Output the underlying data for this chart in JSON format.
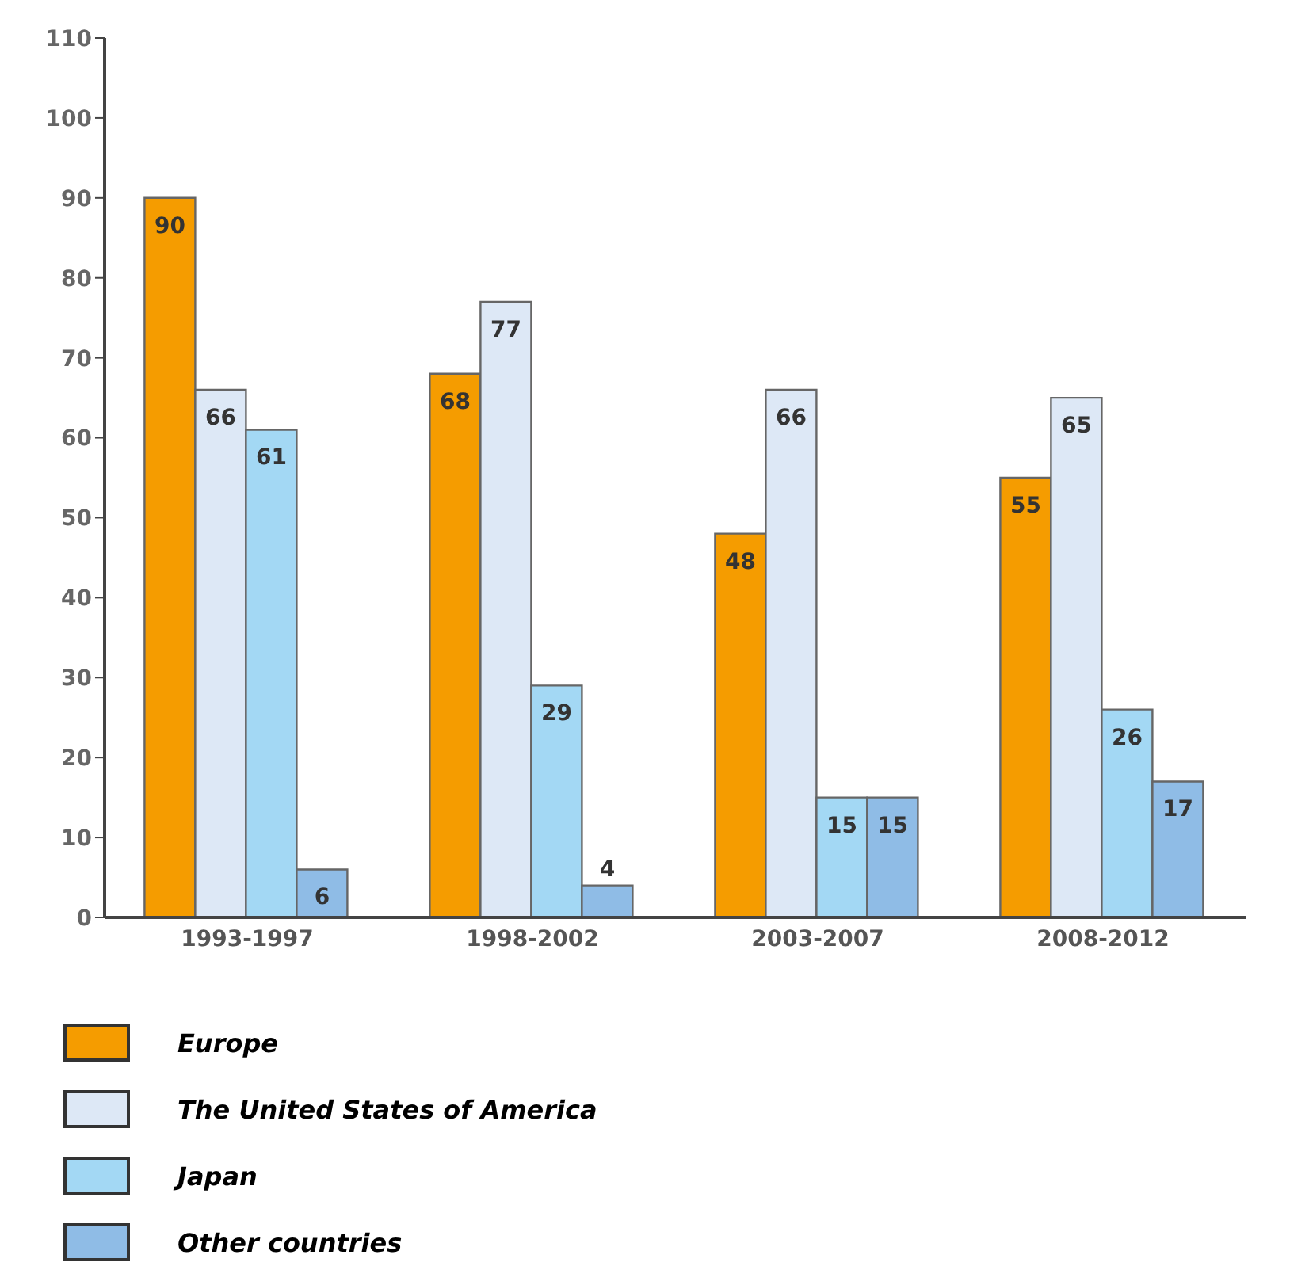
{
  "chart_data": {
    "type": "bar",
    "categories": [
      "1993-1997",
      "1998-2002",
      "2003-2007",
      "2008-2012"
    ],
    "series": [
      {
        "name": "Europe",
        "color": "#f59c00",
        "values": [
          90,
          68,
          48,
          55
        ]
      },
      {
        "name": "The United States of America",
        "color": "#dde8f6",
        "values": [
          66,
          77,
          66,
          65
        ]
      },
      {
        "name": "Japan",
        "color": "#a3d8f4",
        "values": [
          61,
          29,
          15,
          26
        ]
      },
      {
        "name": "Other countries",
        "color": "#8fbce6",
        "values": [
          6,
          4,
          15,
          17
        ]
      }
    ],
    "ylim": [
      0,
      110
    ],
    "yticks": [
      0,
      10,
      20,
      30,
      40,
      50,
      60,
      70,
      80,
      90,
      100,
      110
    ],
    "data_labels": true,
    "legend": "bottom left"
  }
}
